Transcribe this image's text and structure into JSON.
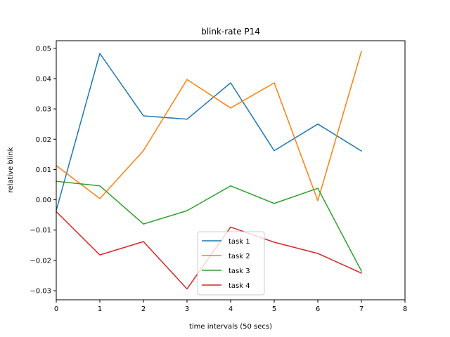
{
  "chart_data": {
    "type": "line",
    "title": "blink-rate P14",
    "xlabel": "time intervals (50 secs)",
    "ylabel": "relative blink",
    "xlim": [
      0,
      8
    ],
    "ylim": [
      -0.033,
      0.0525
    ],
    "xticks": [
      0,
      1,
      2,
      3,
      4,
      5,
      6,
      7,
      8
    ],
    "xtick_labels": [
      "0",
      "1",
      "2",
      "3",
      "4",
      "5",
      "6",
      "7",
      "8"
    ],
    "yticks": [
      -0.03,
      -0.02,
      -0.01,
      0.0,
      0.01,
      0.02,
      0.03,
      0.04,
      0.05
    ],
    "ytick_labels": [
      "−0.03",
      "−0.02",
      "−0.01",
      "0.00",
      "0.01",
      "0.02",
      "0.03",
      "0.04",
      "0.05"
    ],
    "grid": false,
    "legend_position": "bottom-center",
    "x": [
      0,
      1,
      2,
      3,
      4,
      5,
      6,
      7
    ],
    "series": [
      {
        "name": "task 1",
        "color": "#1f77b4",
        "values": [
          -0.0035,
          0.0483,
          0.0277,
          0.0266,
          0.0386,
          0.0162,
          0.025,
          0.0161
        ]
      },
      {
        "name": "task 2",
        "color": "#ff7f0e",
        "values": [
          0.0113,
          0.0004,
          0.0162,
          0.0397,
          0.0303,
          0.0386,
          -0.0003,
          0.049
        ]
      },
      {
        "name": "task 3",
        "color": "#2ca02c",
        "values": [
          0.0061,
          0.0046,
          -0.008,
          -0.0036,
          0.0046,
          -0.0012,
          0.0038,
          -0.0235
        ]
      },
      {
        "name": "task 4",
        "color": "#d62728",
        "values": [
          -0.0039,
          -0.0182,
          -0.0138,
          -0.0294,
          -0.009,
          -0.014,
          -0.0177,
          -0.0242
        ]
      }
    ]
  }
}
